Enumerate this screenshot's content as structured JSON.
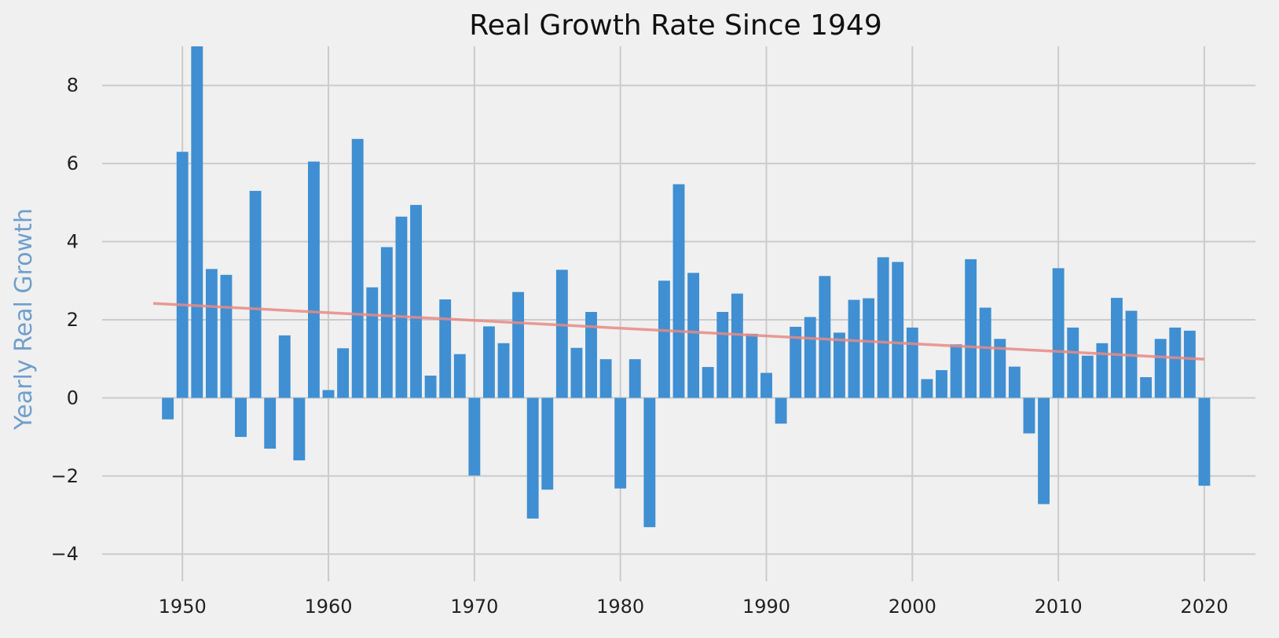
{
  "chart_data": {
    "type": "bar",
    "title": "Real Growth Rate Since 1949",
    "xlabel": "",
    "ylabel": "Yearly Real Growth",
    "xlim": [
      1944.5,
      2023.5
    ],
    "ylim": [
      -4.7,
      9.0
    ],
    "x_ticks": [
      1950,
      1960,
      1970,
      1980,
      1990,
      2000,
      2010,
      2020
    ],
    "x_tick_labels": [
      "1950",
      "1960",
      "1970",
      "1980",
      "1990",
      "2000",
      "2010",
      "2020"
    ],
    "y_ticks": [
      -4,
      -2,
      0,
      2,
      4,
      6,
      8
    ],
    "y_tick_labels": [
      "−4",
      "−2",
      "0",
      "2",
      "4",
      "6",
      "8"
    ],
    "grid": true,
    "colors": {
      "background": "#f0f0f0",
      "grid": "#cbcbcb",
      "bars": "#3f8fd2",
      "trendline": "#e88a85",
      "ylabel": "#6f9fcc"
    },
    "x": [
      1949,
      1950,
      1951,
      1952,
      1953,
      1954,
      1955,
      1956,
      1957,
      1958,
      1959,
      1960,
      1961,
      1962,
      1963,
      1964,
      1965,
      1966,
      1967,
      1968,
      1969,
      1970,
      1971,
      1972,
      1973,
      1974,
      1975,
      1976,
      1977,
      1978,
      1979,
      1980,
      1981,
      1982,
      1983,
      1984,
      1985,
      1986,
      1987,
      1988,
      1989,
      1990,
      1991,
      1992,
      1993,
      1994,
      1995,
      1996,
      1997,
      1998,
      1999,
      2000,
      2001,
      2002,
      2003,
      2004,
      2005,
      2006,
      2007,
      2008,
      2009,
      2010,
      2011,
      2012,
      2013,
      2014,
      2015,
      2016,
      2017,
      2018,
      2019,
      2020
    ],
    "values": [
      -0.55,
      6.3,
      9.0,
      3.3,
      3.15,
      -1.0,
      5.3,
      -1.3,
      1.6,
      -1.6,
      6.05,
      0.2,
      1.27,
      6.63,
      2.83,
      3.86,
      4.64,
      4.94,
      0.57,
      2.52,
      1.12,
      -1.99,
      1.83,
      1.4,
      2.71,
      -3.09,
      -2.35,
      3.28,
      1.28,
      2.2,
      0.99,
      -2.32,
      0.99,
      -3.31,
      3.0,
      5.47,
      3.2,
      0.79,
      2.2,
      2.67,
      1.64,
      0.64,
      -0.66,
      1.82,
      2.07,
      3.12,
      1.67,
      2.51,
      2.55,
      3.6,
      3.48,
      1.8,
      0.48,
      0.71,
      1.37,
      3.55,
      2.31,
      1.51,
      0.8,
      -0.91,
      -2.72,
      3.32,
      1.8,
      1.08,
      1.4,
      2.56,
      2.23,
      0.53,
      1.51,
      1.8,
      1.72,
      -2.25
    ],
    "trendline": {
      "x": [
        1948,
        2020
      ],
      "y": [
        2.42,
        0.99
      ]
    }
  }
}
